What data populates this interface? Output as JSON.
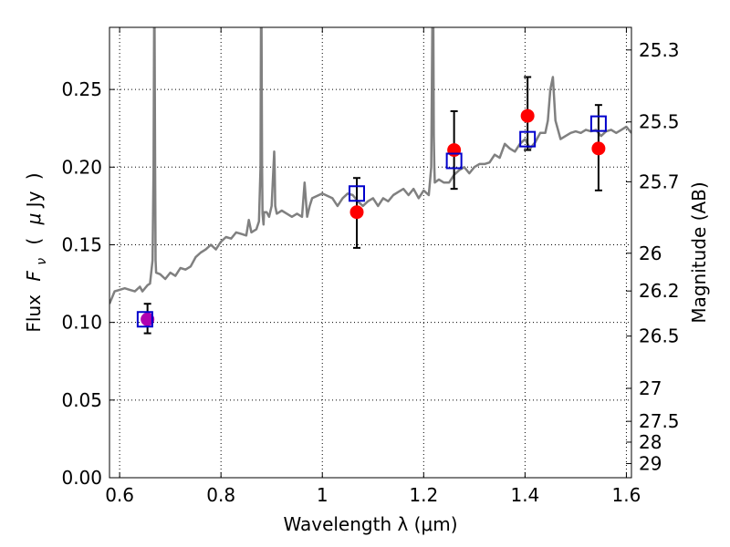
{
  "chart_data": {
    "type": "scatter",
    "xlabel": "Wavelength  λ (μm)",
    "ylabel_parts": {
      "left": "Flux",
      "var": "F",
      "sub": "ν",
      "paren_open": "(",
      "mu": "μ",
      "unit": "Jy",
      "paren_close": ")"
    },
    "y2label": "Magnitude (AB)",
    "xlim": [
      0.58,
      1.61
    ],
    "ylim": [
      0.0,
      0.29
    ],
    "grid": true,
    "x_ticks": [
      {
        "value": 0.6,
        "label": "0.6"
      },
      {
        "value": 0.8,
        "label": "0.8"
      },
      {
        "value": 1.0,
        "label": "1"
      },
      {
        "value": 1.2,
        "label": "1.2"
      },
      {
        "value": 1.4,
        "label": "1.4"
      },
      {
        "value": 1.6,
        "label": "1.6"
      }
    ],
    "y_ticks": [
      {
        "value": 0.0,
        "label": "0.00"
      },
      {
        "value": 0.05,
        "label": "0.05"
      },
      {
        "value": 0.1,
        "label": "0.10"
      },
      {
        "value": 0.15,
        "label": "0.15"
      },
      {
        "value": 0.2,
        "label": "0.20"
      },
      {
        "value": 0.25,
        "label": "0.25"
      }
    ],
    "mag_ticks": [
      {
        "mag": 25.3,
        "label": "25.3"
      },
      {
        "mag": 25.5,
        "label": "25.5"
      },
      {
        "mag": 25.7,
        "label": "25.7"
      },
      {
        "mag": 26.0,
        "label": "26"
      },
      {
        "mag": 26.2,
        "label": "26.2"
      },
      {
        "mag": 26.5,
        "label": "26.5"
      },
      {
        "mag": 27.0,
        "label": "27"
      },
      {
        "mag": 27.5,
        "label": "27.5"
      },
      {
        "mag": 28.0,
        "label": "28"
      },
      {
        "mag": 29.0,
        "label": "29"
      }
    ],
    "observed": {
      "color": "#ff0000",
      "points": [
        {
          "x": 0.655,
          "y": 0.102,
          "err_low": 0.009,
          "err_high": 0.01,
          "color": "#b000b0"
        },
        {
          "x": 1.068,
          "y": 0.171,
          "err_low": 0.023,
          "err_high": 0.022
        },
        {
          "x": 1.26,
          "y": 0.211,
          "err_low": 0.025,
          "err_high": 0.025
        },
        {
          "x": 1.405,
          "y": 0.233,
          "err_low": 0.022,
          "err_high": 0.025
        },
        {
          "x": 1.545,
          "y": 0.212,
          "err_low": 0.027,
          "err_high": 0.028
        }
      ]
    },
    "model_points": {
      "color": "#0000cc",
      "points": [
        {
          "x": 0.65,
          "y": 0.102
        },
        {
          "x": 1.068,
          "y": 0.183
        },
        {
          "x": 1.26,
          "y": 0.204
        },
        {
          "x": 1.405,
          "y": 0.218
        },
        {
          "x": 1.545,
          "y": 0.228
        }
      ]
    },
    "model_spectrum": {
      "color": "#808080",
      "x": [
        0.58,
        0.59,
        0.6,
        0.61,
        0.62,
        0.63,
        0.64,
        0.645,
        0.655,
        0.66,
        0.665,
        0.667,
        0.668,
        0.669,
        0.67,
        0.671,
        0.672,
        0.68,
        0.69,
        0.7,
        0.71,
        0.72,
        0.73,
        0.74,
        0.75,
        0.76,
        0.77,
        0.78,
        0.79,
        0.8,
        0.81,
        0.82,
        0.83,
        0.84,
        0.85,
        0.855,
        0.86,
        0.87,
        0.875,
        0.878,
        0.879,
        0.88,
        0.881,
        0.882,
        0.884,
        0.885,
        0.89,
        0.895,
        0.9,
        0.905,
        0.906,
        0.907,
        0.91,
        0.92,
        0.93,
        0.94,
        0.95,
        0.96,
        0.965,
        0.97,
        0.975,
        0.98,
        1.0,
        1.02,
        1.03,
        1.04,
        1.05,
        1.06,
        1.07,
        1.08,
        1.09,
        1.1,
        1.11,
        1.12,
        1.13,
        1.14,
        1.15,
        1.16,
        1.17,
        1.18,
        1.19,
        1.2,
        1.21,
        1.215,
        1.217,
        1.218,
        1.219,
        1.22,
        1.221,
        1.222,
        1.23,
        1.24,
        1.25,
        1.26,
        1.27,
        1.28,
        1.29,
        1.3,
        1.31,
        1.32,
        1.33,
        1.34,
        1.35,
        1.36,
        1.37,
        1.38,
        1.39,
        1.4,
        1.41,
        1.42,
        1.43,
        1.44,
        1.445,
        1.45,
        1.455,
        1.46,
        1.47,
        1.48,
        1.49,
        1.5,
        1.51,
        1.52,
        1.53,
        1.54,
        1.55,
        1.56,
        1.57,
        1.58,
        1.59,
        1.6,
        1.61
      ],
      "y": [
        0.112,
        0.12,
        0.121,
        0.122,
        0.121,
        0.12,
        0.123,
        0.12,
        0.124,
        0.125,
        0.14,
        0.2,
        0.29,
        0.29,
        0.2,
        0.14,
        0.132,
        0.131,
        0.128,
        0.132,
        0.13,
        0.135,
        0.134,
        0.136,
        0.142,
        0.145,
        0.147,
        0.15,
        0.147,
        0.152,
        0.155,
        0.154,
        0.158,
        0.157,
        0.156,
        0.166,
        0.158,
        0.16,
        0.165,
        0.2,
        0.29,
        0.29,
        0.2,
        0.17,
        0.163,
        0.171,
        0.171,
        0.168,
        0.175,
        0.21,
        0.2,
        0.175,
        0.17,
        0.172,
        0.17,
        0.168,
        0.17,
        0.168,
        0.19,
        0.168,
        0.175,
        0.18,
        0.183,
        0.18,
        0.175,
        0.18,
        0.183,
        0.182,
        0.178,
        0.175,
        0.178,
        0.18,
        0.175,
        0.18,
        0.178,
        0.182,
        0.184,
        0.186,
        0.182,
        0.186,
        0.18,
        0.185,
        0.182,
        0.2,
        0.29,
        0.29,
        0.29,
        0.22,
        0.2,
        0.19,
        0.192,
        0.19,
        0.19,
        0.195,
        0.198,
        0.2,
        0.196,
        0.2,
        0.202,
        0.202,
        0.203,
        0.208,
        0.206,
        0.215,
        0.212,
        0.21,
        0.215,
        0.218,
        0.212,
        0.216,
        0.222,
        0.222,
        0.23,
        0.25,
        0.258,
        0.23,
        0.218,
        0.22,
        0.222,
        0.223,
        0.222,
        0.224,
        0.223,
        0.224,
        0.22,
        0.223,
        0.224,
        0.222,
        0.224,
        0.226,
        0.222
      ]
    }
  }
}
